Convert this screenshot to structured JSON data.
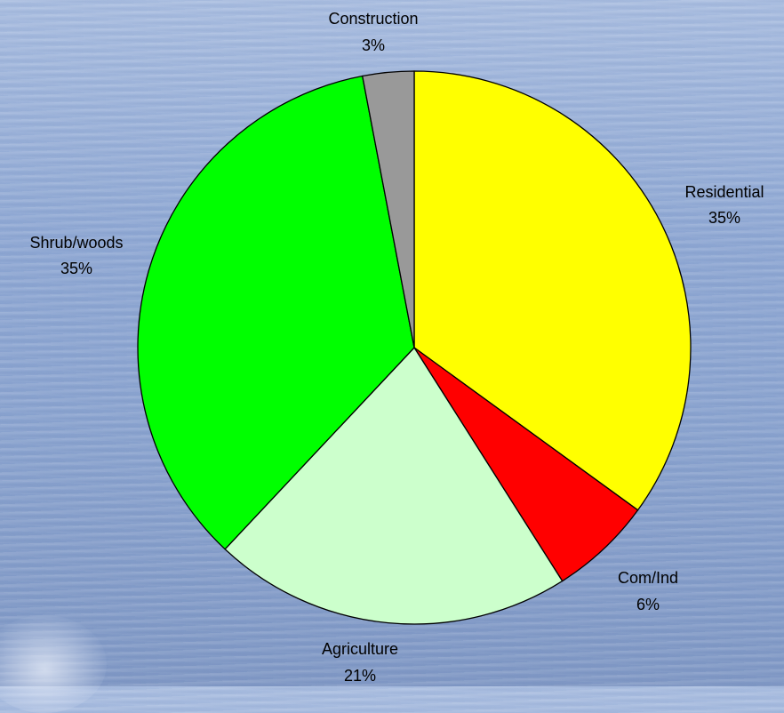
{
  "chart_data": {
    "type": "pie",
    "start_angle_deg": 0,
    "direction": "clockwise",
    "slices": [
      {
        "label": "Residential",
        "percent_label": "35%",
        "value": 35,
        "color": "#ffff00"
      },
      {
        "label": "Com/Ind",
        "percent_label": "6%",
        "value": 6,
        "color": "#ff0000"
      },
      {
        "label": "Agriculture",
        "percent_label": "21%",
        "value": 21,
        "color": "#ccffcc"
      },
      {
        "label": "Shrub/woods",
        "percent_label": "35%",
        "value": 35,
        "color": "#00ff00"
      },
      {
        "label": "Construction",
        "percent_label": "3%",
        "value": 3,
        "color": "#999999"
      }
    ]
  }
}
